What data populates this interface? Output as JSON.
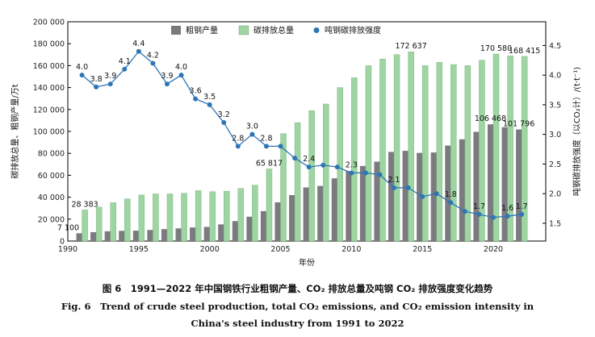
{
  "caption": {
    "cn": "图 6　1991—2022 年中国钢铁行业粗钢产量、CO₂ 排放总量及吨钢 CO₂ 排放强度变化趋势",
    "en_line1": "Fig. 6　Trend of crude steel production, total CO₂ emissions, and CO₂ emission intensity in",
    "en_line2": "China's steel industry from 1991 to 2022"
  },
  "chart_data": {
    "type": "bar",
    "xlabel": "年份",
    "ylabel_left": "碳排放总量、粗钢产量/万t",
    "ylabel_right": "吨钢碳排放强度（以CO₂计）/(t·t⁻¹)",
    "ylim_left": [
      0,
      200000
    ],
    "ylim_right": [
      1.2,
      4.9
    ],
    "x_ticks": [
      1990,
      1995,
      2000,
      2005,
      2010,
      2015,
      2020
    ],
    "y_left_ticks": [
      0,
      20000,
      40000,
      60000,
      80000,
      100000,
      120000,
      140000,
      160000,
      180000,
      200000
    ],
    "y_left_tick_labels": [
      "0",
      "20 000",
      "40 000",
      "60 000",
      "80 000",
      "100 000",
      "120 000",
      "140 000",
      "160 000",
      "180 000",
      "200 000"
    ],
    "y_right_ticks": [
      1.5,
      2.0,
      2.5,
      3.0,
      3.5,
      4.0,
      4.5
    ],
    "y_right_tick_labels": [
      "1.5",
      "2.0",
      "2.5",
      "3.0",
      "3.5",
      "4.0",
      "4.5"
    ],
    "legend_position": "top",
    "grid": false,
    "years": [
      1991,
      1992,
      1993,
      1994,
      1995,
      1996,
      1997,
      1998,
      1999,
      2000,
      2001,
      2002,
      2003,
      2004,
      2005,
      2006,
      2007,
      2008,
      2009,
      2010,
      2011,
      2012,
      2013,
      2014,
      2015,
      2016,
      2017,
      2018,
      2019,
      2020,
      2021,
      2022
    ],
    "series": [
      {
        "name": "粗钢产量",
        "kind": "bar",
        "color": "#7a7a7f",
        "values": [
          7100,
          8100,
          8900,
          9300,
          9500,
          10100,
          10900,
          11600,
          12400,
          12900,
          15200,
          18200,
          22200,
          27300,
          35300,
          41900,
          48900,
          50300,
          57200,
          63700,
          68500,
          72400,
          81300,
          82300,
          80400,
          80800,
          87100,
          92800,
          99600,
          106468,
          103800,
          101796
        ]
      },
      {
        "name": "碳排放总量",
        "kind": "bar",
        "color": "#9fd4a3",
        "values": [
          28383,
          31000,
          35000,
          38500,
          42000,
          43000,
          43000,
          43500,
          46000,
          45000,
          45500,
          48000,
          51000,
          65817,
          98000,
          108000,
          119000,
          125000,
          140000,
          149000,
          160000,
          166000,
          170000,
          172637,
          160000,
          163000,
          161000,
          160000,
          165000,
          170580,
          169000,
          168415
        ]
      },
      {
        "name": "吨钢碳排放强度",
        "kind": "line",
        "color": "#2e75b6",
        "values": [
          4.0,
          3.8,
          3.85,
          4.1,
          4.4,
          4.2,
          3.85,
          4.0,
          3.6,
          3.5,
          3.2,
          2.8,
          3.0,
          2.8,
          2.8,
          2.6,
          2.45,
          2.48,
          2.45,
          2.35,
          2.35,
          2.32,
          2.1,
          2.1,
          1.95,
          2.0,
          1.85,
          1.7,
          1.65,
          1.6,
          1.62,
          1.65
        ]
      }
    ],
    "annotations": {
      "steel": [
        {
          "year": 1991,
          "label": "7 100"
        },
        {
          "year": 2020,
          "label": "106 468"
        },
        {
          "year": 2022,
          "label": "101 796"
        }
      ],
      "emission": [
        {
          "year": 1991,
          "label": "28 383"
        },
        {
          "year": 2004,
          "label": "65 817"
        },
        {
          "year": 2014,
          "label": "172 637"
        },
        {
          "year": 2020,
          "label": "170 580"
        },
        {
          "year": 2022,
          "label": "168 415"
        }
      ],
      "intensity": [
        {
          "year": 1991,
          "label": "4.0"
        },
        {
          "year": 1992,
          "label": "3.8"
        },
        {
          "year": 1993,
          "label": "3.9"
        },
        {
          "year": 1994,
          "label": "4.1"
        },
        {
          "year": 1995,
          "label": "4.4"
        },
        {
          "year": 1996,
          "label": "4.2"
        },
        {
          "year": 1997,
          "label": "3.9"
        },
        {
          "year": 1998,
          "label": "4.0"
        },
        {
          "year": 1999,
          "label": "3.6"
        },
        {
          "year": 2000,
          "label": "3.5"
        },
        {
          "year": 2001,
          "label": "3.2"
        },
        {
          "year": 2002,
          "label": "2.8"
        },
        {
          "year": 2003,
          "label": "3.0"
        },
        {
          "year": 2004,
          "label": "2.8"
        },
        {
          "year": 2007,
          "label": "2.4"
        },
        {
          "year": 2010,
          "label": "2.3"
        },
        {
          "year": 2013,
          "label": "2.1"
        },
        {
          "year": 2017,
          "label": "1.8"
        },
        {
          "year": 2019,
          "label": "1.7"
        },
        {
          "year": 2021,
          "label": "1.6"
        },
        {
          "year": 2022,
          "label": "1.7"
        }
      ]
    }
  }
}
